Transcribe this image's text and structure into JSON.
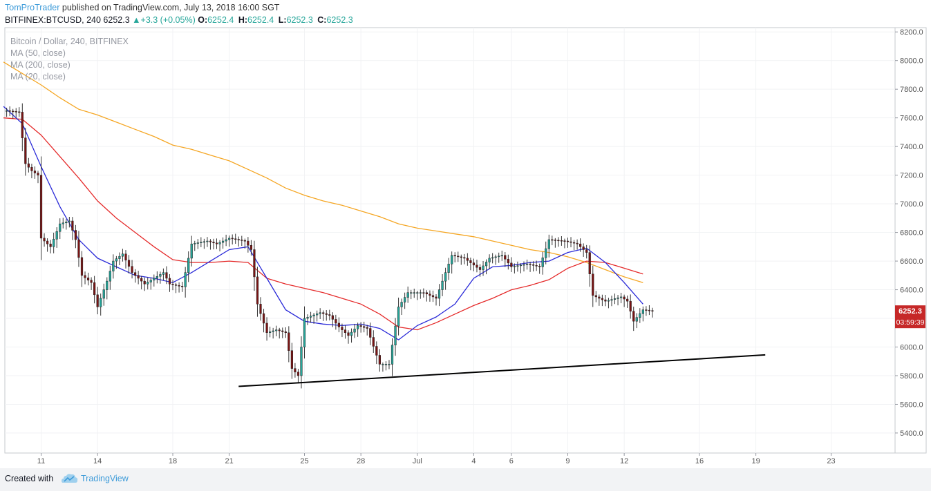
{
  "header": {
    "author": "TomProTrader",
    "published_text": " published on TradingView.com, July 13, 2018 16:00 SGT",
    "symbol": "BITFINEX:BTCUSD, 240",
    "last": "6252.3",
    "change": "+3.3 (+0.05%)",
    "change_icon": "up-triangle-icon",
    "ohlc": [
      {
        "label": "O:",
        "value": "6252.4"
      },
      {
        "label": "H:",
        "value": "6252.4"
      },
      {
        "label": "L:",
        "value": "6252.3"
      },
      {
        "label": "C:",
        "value": "6252.3"
      }
    ]
  },
  "footer": {
    "created_with": "Created with",
    "brand": "TradingView",
    "logo_icon": "tradingview-cloud-icon"
  },
  "chart_data": {
    "type": "candlestick",
    "pane_legend": [
      "Bitcoin / Dollar, 240, BITFINEX",
      "MA (50, close)",
      "MA (200, close)",
      "MA (20, close)"
    ],
    "y_ticks": [
      "8200.0",
      "8000.0",
      "7800.0",
      "7600.0",
      "7400.0",
      "7200.0",
      "7000.0",
      "6800.0",
      "6600.0",
      "6400.0",
      "6200.0",
      "6000.0",
      "5800.0",
      "5600.0",
      "5400.0"
    ],
    "ylim": [
      5260,
      8230
    ],
    "x_ticks": [
      {
        "label": "11",
        "day": 11
      },
      {
        "label": "14",
        "day": 14
      },
      {
        "label": "18",
        "day": 18
      },
      {
        "label": "21",
        "day": 21
      },
      {
        "label": "25",
        "day": 25
      },
      {
        "label": "28",
        "day": 28
      },
      {
        "label": "Jul",
        "day": 31
      },
      {
        "label": "4",
        "day": 34
      },
      {
        "label": "6",
        "day": 36
      },
      {
        "label": "9",
        "day": 39
      },
      {
        "label": "12",
        "day": 42
      },
      {
        "label": "16",
        "day": 46
      },
      {
        "label": "19",
        "day": 49
      },
      {
        "label": "23",
        "day": 53
      }
    ],
    "x_range_days": [
      9.07,
      56.4
    ],
    "price_label": {
      "value": 6252.3,
      "text": "6252.3"
    },
    "countdown": "03:59:39",
    "colors": {
      "up": "#26a69a",
      "down": "#7a1414",
      "ma20": "#2a2ad8",
      "ma50": "#e52a2a",
      "ma200": "#f5a623",
      "trend": "#000000",
      "price_tag": "#c62828"
    },
    "price_path": [
      [
        "2018-06-09 04:00",
        7650
      ],
      [
        "2018-06-09 20:00",
        7640
      ],
      [
        "2018-06-10 04:00",
        7280
      ],
      [
        "2018-06-10 12:00",
        7230
      ],
      [
        "2018-06-10 20:00",
        7200
      ],
      [
        "2018-06-11 00:00",
        6760
      ],
      [
        "2018-06-11 12:00",
        6700
      ],
      [
        "2018-06-12 00:00",
        6860
      ],
      [
        "2018-06-12 12:00",
        6880
      ],
      [
        "2018-06-12 20:00",
        6750
      ],
      [
        "2018-06-13 04:00",
        6500
      ],
      [
        "2018-06-13 16:00",
        6450
      ],
      [
        "2018-06-14 00:00",
        6280
      ],
      [
        "2018-06-14 12:00",
        6460
      ],
      [
        "2018-06-14 20:00",
        6600
      ],
      [
        "2018-06-15 08:00",
        6650
      ],
      [
        "2018-06-15 20:00",
        6520
      ],
      [
        "2018-06-16 12:00",
        6440
      ],
      [
        "2018-06-17 00:00",
        6480
      ],
      [
        "2018-06-17 12:00",
        6520
      ],
      [
        "2018-06-17 20:00",
        6440
      ],
      [
        "2018-06-18 12:00",
        6420
      ],
      [
        "2018-06-19 00:00",
        6720
      ],
      [
        "2018-06-19 20:00",
        6740
      ],
      [
        "2018-06-20 08:00",
        6720
      ],
      [
        "2018-06-21 00:00",
        6760
      ],
      [
        "2018-06-21 20:00",
        6740
      ],
      [
        "2018-06-22 04:00",
        6680
      ],
      [
        "2018-06-22 12:00",
        6300
      ],
      [
        "2018-06-23 00:00",
        6100
      ],
      [
        "2018-06-23 12:00",
        6120
      ],
      [
        "2018-06-24 00:00",
        6100
      ],
      [
        "2018-06-24 08:00",
        5850
      ],
      [
        "2018-06-24 16:00",
        5800
      ],
      [
        "2018-06-25 00:00",
        6200
      ],
      [
        "2018-06-25 20:00",
        6240
      ],
      [
        "2018-06-26 08:00",
        6220
      ],
      [
        "2018-06-26 20:00",
        6140
      ],
      [
        "2018-06-27 08:00",
        6080
      ],
      [
        "2018-06-27 20:00",
        6150
      ],
      [
        "2018-06-28 08:00",
        6130
      ],
      [
        "2018-06-29 00:00",
        5880
      ],
      [
        "2018-06-29 12:00",
        5880
      ],
      [
        "2018-06-30 00:00",
        6280
      ],
      [
        "2018-06-30 12:00",
        6380
      ],
      [
        "2018-07-01 08:00",
        6380
      ],
      [
        "2018-07-02 00:00",
        6340
      ],
      [
        "2018-07-02 20:00",
        6640
      ],
      [
        "2018-07-03 12:00",
        6620
      ],
      [
        "2018-07-04 08:00",
        6540
      ],
      [
        "2018-07-04 20:00",
        6620
      ],
      [
        "2018-07-05 12:00",
        6640
      ],
      [
        "2018-07-06 00:00",
        6560
      ],
      [
        "2018-07-06 20:00",
        6580
      ],
      [
        "2018-07-07 12:00",
        6560
      ],
      [
        "2018-07-08 00:00",
        6750
      ],
      [
        "2018-07-08 20:00",
        6740
      ],
      [
        "2018-07-09 12:00",
        6720
      ],
      [
        "2018-07-10 00:00",
        6660
      ],
      [
        "2018-07-10 08:00",
        6360
      ],
      [
        "2018-07-11 00:00",
        6320
      ],
      [
        "2018-07-11 20:00",
        6350
      ],
      [
        "2018-07-12 04:00",
        6320
      ],
      [
        "2018-07-12 12:00",
        6180
      ],
      [
        "2018-07-13 00:00",
        6260
      ],
      [
        "2018-07-13 12:00",
        6252
      ]
    ],
    "ma20": [
      [
        "2018-06-09 00:00",
        7680
      ],
      [
        "2018-06-10 00:00",
        7560
      ],
      [
        "2018-06-11 00:00",
        7260
      ],
      [
        "2018-06-12 00:00",
        6980
      ],
      [
        "2018-06-13 00:00",
        6750
      ],
      [
        "2018-06-14 00:00",
        6620
      ],
      [
        "2018-06-15 00:00",
        6560
      ],
      [
        "2018-06-16 00:00",
        6500
      ],
      [
        "2018-06-17 00:00",
        6480
      ],
      [
        "2018-06-18 00:00",
        6450
      ],
      [
        "2018-06-19 00:00",
        6520
      ],
      [
        "2018-06-20 00:00",
        6600
      ],
      [
        "2018-06-21 00:00",
        6680
      ],
      [
        "2018-06-22 00:00",
        6700
      ],
      [
        "2018-06-23 00:00",
        6480
      ],
      [
        "2018-06-24 00:00",
        6260
      ],
      [
        "2018-06-25 00:00",
        6180
      ],
      [
        "2018-06-26 00:00",
        6160
      ],
      [
        "2018-06-27 00:00",
        6150
      ],
      [
        "2018-06-28 00:00",
        6160
      ],
      [
        "2018-06-29 00:00",
        6130
      ],
      [
        "2018-06-30 00:00",
        6050
      ],
      [
        "2018-07-01 00:00",
        6150
      ],
      [
        "2018-07-02 00:00",
        6210
      ],
      [
        "2018-07-03 00:00",
        6300
      ],
      [
        "2018-07-04 00:00",
        6480
      ],
      [
        "2018-07-05 00:00",
        6560
      ],
      [
        "2018-07-06 00:00",
        6570
      ],
      [
        "2018-07-07 00:00",
        6590
      ],
      [
        "2018-07-08 00:00",
        6600
      ],
      [
        "2018-07-09 00:00",
        6660
      ],
      [
        "2018-07-10 00:00",
        6690
      ],
      [
        "2018-07-11 00:00",
        6590
      ],
      [
        "2018-07-12 00:00",
        6450
      ],
      [
        "2018-07-13 00:00",
        6300
      ]
    ],
    "ma50": [
      [
        "2018-06-09 00:00",
        7600
      ],
      [
        "2018-06-10 00:00",
        7590
      ],
      [
        "2018-06-11 00:00",
        7480
      ],
      [
        "2018-06-12 00:00",
        7330
      ],
      [
        "2018-06-13 00:00",
        7180
      ],
      [
        "2018-06-14 00:00",
        7020
      ],
      [
        "2018-06-15 00:00",
        6900
      ],
      [
        "2018-06-16 00:00",
        6800
      ],
      [
        "2018-06-17 00:00",
        6700
      ],
      [
        "2018-06-18 00:00",
        6610
      ],
      [
        "2018-06-19 00:00",
        6590
      ],
      [
        "2018-06-20 00:00",
        6590
      ],
      [
        "2018-06-21 00:00",
        6600
      ],
      [
        "2018-06-22 00:00",
        6590
      ],
      [
        "2018-06-23 00:00",
        6480
      ],
      [
        "2018-06-24 00:00",
        6440
      ],
      [
        "2018-06-25 00:00",
        6410
      ],
      [
        "2018-06-26 00:00",
        6380
      ],
      [
        "2018-06-27 00:00",
        6340
      ],
      [
        "2018-06-28 00:00",
        6300
      ],
      [
        "2018-06-29 00:00",
        6230
      ],
      [
        "2018-06-30 00:00",
        6140
      ],
      [
        "2018-07-01 00:00",
        6120
      ],
      [
        "2018-07-02 00:00",
        6170
      ],
      [
        "2018-07-03 00:00",
        6230
      ],
      [
        "2018-07-04 00:00",
        6290
      ],
      [
        "2018-07-05 00:00",
        6340
      ],
      [
        "2018-07-06 00:00",
        6400
      ],
      [
        "2018-07-07 00:00",
        6430
      ],
      [
        "2018-07-08 00:00",
        6470
      ],
      [
        "2018-07-09 00:00",
        6550
      ],
      [
        "2018-07-10 00:00",
        6600
      ],
      [
        "2018-07-11 00:00",
        6590
      ],
      [
        "2018-07-12 00:00",
        6550
      ],
      [
        "2018-07-13 00:00",
        6510
      ]
    ],
    "ma200": [
      [
        "2018-06-09 00:00",
        7990
      ],
      [
        "2018-06-10 00:00",
        7910
      ],
      [
        "2018-06-11 00:00",
        7830
      ],
      [
        "2018-06-12 00:00",
        7740
      ],
      [
        "2018-06-13 00:00",
        7660
      ],
      [
        "2018-06-14 00:00",
        7620
      ],
      [
        "2018-06-15 00:00",
        7570
      ],
      [
        "2018-06-16 00:00",
        7520
      ],
      [
        "2018-06-17 00:00",
        7470
      ],
      [
        "2018-06-18 00:00",
        7410
      ],
      [
        "2018-06-19 00:00",
        7380
      ],
      [
        "2018-06-20 00:00",
        7340
      ],
      [
        "2018-06-21 00:00",
        7300
      ],
      [
        "2018-06-22 00:00",
        7240
      ],
      [
        "2018-06-23 00:00",
        7180
      ],
      [
        "2018-06-24 00:00",
        7110
      ],
      [
        "2018-06-25 00:00",
        7060
      ],
      [
        "2018-06-26 00:00",
        7020
      ],
      [
        "2018-06-27 00:00",
        6990
      ],
      [
        "2018-06-28 00:00",
        6950
      ],
      [
        "2018-06-29 00:00",
        6910
      ],
      [
        "2018-06-30 00:00",
        6860
      ],
      [
        "2018-07-01 00:00",
        6830
      ],
      [
        "2018-07-02 00:00",
        6810
      ],
      [
        "2018-07-03 00:00",
        6790
      ],
      [
        "2018-07-04 00:00",
        6770
      ],
      [
        "2018-07-05 00:00",
        6740
      ],
      [
        "2018-07-06 00:00",
        6710
      ],
      [
        "2018-07-07 00:00",
        6680
      ],
      [
        "2018-07-08 00:00",
        6660
      ],
      [
        "2018-07-09 00:00",
        6630
      ],
      [
        "2018-07-10 00:00",
        6590
      ],
      [
        "2018-07-11 00:00",
        6540
      ],
      [
        "2018-07-12 00:00",
        6490
      ],
      [
        "2018-07-13 00:00",
        6450
      ]
    ],
    "trendline": [
      [
        "2018-06-21 12:00",
        5725
      ],
      [
        "2018-07-19 12:00",
        5945
      ]
    ]
  }
}
